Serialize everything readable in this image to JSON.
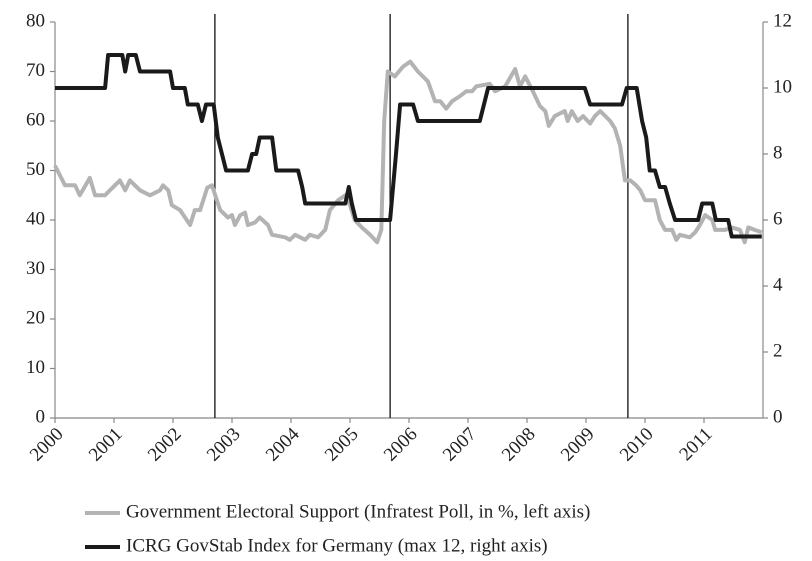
{
  "chart_data": {
    "type": "line",
    "xlim": [
      2000,
      2012
    ],
    "xticks": [
      2000,
      2001,
      2002,
      2003,
      2004,
      2005,
      2006,
      2007,
      2008,
      2009,
      2010,
      2011
    ],
    "ylim": [
      0,
      80
    ],
    "yticks": [
      0,
      10,
      20,
      30,
      40,
      50,
      60,
      70,
      80
    ],
    "y2lim": [
      0,
      12
    ],
    "y2ticks": [
      0,
      2,
      4,
      6,
      8,
      10,
      12
    ],
    "vlines": [
      2002.71,
      2005.68,
      2009.71
    ],
    "series": [
      {
        "name": "Government Electoral Support (Infratest Poll, in %, left axis)",
        "color": "#b3b3b3",
        "x": [
          2000.0,
          2000.17,
          2000.34,
          2000.42,
          2000.59,
          2000.68,
          2000.85,
          2000.93,
          2001.1,
          2001.19,
          2001.27,
          2001.44,
          2001.61,
          2001.78,
          2001.83,
          2001.92,
          2001.98,
          2002.12,
          2002.29,
          2002.37,
          2002.46,
          2002.58,
          2002.66,
          2002.8,
          2002.93,
          2003.0,
          2003.05,
          2003.14,
          2003.22,
          2003.27,
          2003.39,
          2003.47,
          2003.61,
          2003.68,
          2003.9,
          2003.98,
          2004.07,
          2004.24,
          2004.32,
          2004.46,
          2004.58,
          2004.66,
          2004.8,
          2004.92,
          2005.0,
          2005.08,
          2005.2,
          2005.34,
          2005.46,
          2005.53,
          2005.58,
          2005.64,
          2005.76,
          2005.9,
          2006.02,
          2006.15,
          2006.32,
          2006.44,
          2006.53,
          2006.63,
          2006.73,
          2006.86,
          2006.97,
          2007.07,
          2007.14,
          2007.37,
          2007.46,
          2007.63,
          2007.8,
          2007.88,
          2007.97,
          2008.1,
          2008.22,
          2008.31,
          2008.37,
          2008.47,
          2008.64,
          2008.69,
          2008.76,
          2008.86,
          2008.95,
          2009.07,
          2009.15,
          2009.24,
          2009.41,
          2009.49,
          2009.58,
          2009.66,
          2009.75,
          2009.85,
          2009.92,
          2010.0,
          2010.17,
          2010.25,
          2010.34,
          2010.46,
          2010.53,
          2010.59,
          2010.76,
          2010.85,
          2010.93,
          2011.02,
          2011.14,
          2011.19,
          2011.36,
          2011.47,
          2011.61,
          2011.69,
          2011.75,
          2011.86,
          2011.98
        ],
        "values": [
          51,
          47,
          47,
          45,
          48.5,
          45,
          45,
          46,
          48,
          46,
          48,
          46,
          45,
          46,
          47,
          46,
          43,
          42,
          39,
          42,
          42,
          46.5,
          47,
          42,
          40.5,
          41,
          39,
          41,
          41.5,
          39,
          39.5,
          40.5,
          39,
          37,
          36.5,
          36,
          37,
          36,
          37,
          36.5,
          38,
          42,
          44,
          45,
          43,
          40,
          38.5,
          37,
          35.5,
          38,
          60,
          70,
          69,
          71,
          72,
          70,
          68,
          64,
          64,
          62.5,
          64,
          65,
          66,
          66,
          67,
          67.5,
          66,
          67,
          70.5,
          67,
          69,
          66,
          63,
          62,
          59,
          61,
          62,
          60,
          62,
          60,
          61,
          59.5,
          61,
          62,
          60,
          58.5,
          55,
          48,
          48,
          47,
          46,
          44,
          44,
          40,
          38,
          38,
          36,
          37,
          36.5,
          37.5,
          39,
          41,
          40,
          38,
          38,
          38.5,
          38,
          35.5,
          38.5,
          38,
          37.5
        ]
      },
      {
        "name": "ICRG GovStab Index for Germany (max 12, right axis)",
        "color": "#1a1a1a",
        "axis": "y2",
        "x": [
          2000.0,
          2000.85,
          2000.9,
          2001.14,
          2001.19,
          2001.24,
          2001.37,
          2001.44,
          2001.95,
          2002.0,
          2002.2,
          2002.25,
          2002.42,
          2002.49,
          2002.56,
          2002.69,
          2002.76,
          2002.9,
          2003.27,
          2003.34,
          2003.41,
          2003.47,
          2003.68,
          2003.75,
          2004.12,
          2004.19,
          2004.24,
          2004.92,
          2004.98,
          2005.03,
          2005.1,
          2005.68,
          2005.78,
          2005.85,
          2006.07,
          2006.15,
          2007.2,
          2007.34,
          2008.98,
          2009.07,
          2009.61,
          2009.69,
          2009.86,
          2009.95,
          2010.02,
          2010.08,
          2010.17,
          2010.25,
          2010.34,
          2010.42,
          2010.51,
          2010.9,
          2010.97,
          2011.14,
          2011.2,
          2011.41,
          2011.47,
          2011.98
        ],
        "values": [
          10,
          10,
          11,
          11,
          10.5,
          11,
          11,
          10.5,
          10.5,
          10,
          10,
          9.5,
          9.5,
          9,
          9.5,
          9.5,
          8.5,
          7.5,
          7.5,
          8,
          8,
          8.5,
          8.5,
          7.5,
          7.5,
          7,
          6.5,
          6.5,
          7,
          6.5,
          6,
          6,
          8,
          9.5,
          9.5,
          9,
          9,
          10,
          10,
          9.5,
          9.5,
          10,
          10,
          9,
          8.5,
          7.5,
          7.5,
          7,
          7,
          6.5,
          6,
          6,
          6.5,
          6.5,
          6,
          6,
          5.5,
          5.5
        ]
      }
    ]
  }
}
